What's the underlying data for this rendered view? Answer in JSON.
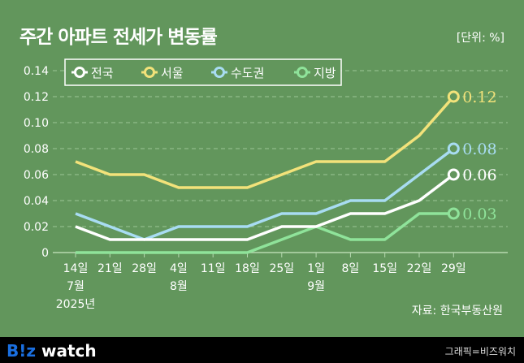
{
  "title": "주간 아파트 전세가 변동률",
  "unit": "[단위: %]",
  "source": "자료: 한국부동산원",
  "footer": {
    "logo_b": "B!z",
    "logo_rest": " watch",
    "credit": "그래픽=비즈워치"
  },
  "chart_data": {
    "type": "line",
    "x_labels": [
      [
        "14일",
        "7월",
        "2025년"
      ],
      [
        "21일"
      ],
      [
        "28일"
      ],
      [
        "4일",
        "8월"
      ],
      [
        "11일"
      ],
      [
        "18일"
      ],
      [
        "25일"
      ],
      [
        "1일",
        "9월"
      ],
      [
        "8일"
      ],
      [
        "15일"
      ],
      [
        "22일"
      ],
      [
        "29일"
      ]
    ],
    "ylim": [
      0,
      0.14
    ],
    "y_ticks": [
      "0",
      "0.02",
      "0.04",
      "0.06",
      "0.08",
      "0.10",
      "0.12",
      "0.14"
    ],
    "grid": true,
    "legend_placement": "top-left",
    "series": [
      {
        "name": "전국",
        "color": "#ffffff",
        "values": [
          0.02,
          0.01,
          0.01,
          0.01,
          0.01,
          0.01,
          0.02,
          0.02,
          0.03,
          0.03,
          0.04,
          0.06
        ],
        "end_label": "0.06"
      },
      {
        "name": "서울",
        "color": "#f2e27a",
        "values": [
          0.07,
          0.06,
          0.06,
          0.05,
          0.05,
          0.05,
          0.06,
          0.07,
          0.07,
          0.07,
          0.09,
          0.12
        ],
        "end_label": "0.12"
      },
      {
        "name": "수도권",
        "color": "#a8dcf2",
        "values": [
          0.03,
          0.02,
          0.01,
          0.02,
          0.02,
          0.02,
          0.03,
          0.03,
          0.04,
          0.04,
          0.06,
          0.08
        ],
        "end_label": "0.08"
      },
      {
        "name": "지방",
        "color": "#8fe39a",
        "values": [
          0,
          0,
          0,
          0,
          0,
          0,
          0.01,
          0.02,
          0.01,
          0.01,
          0.03,
          0.03
        ],
        "end_label": "0.03"
      }
    ]
  }
}
